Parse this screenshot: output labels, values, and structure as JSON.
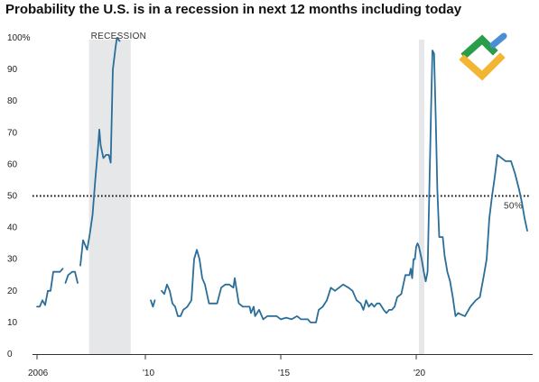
{
  "chart_data": {
    "type": "line",
    "title": "Probability the U.S. is in a recession in next 12 months including today",
    "xlabel": "",
    "ylabel": "",
    "xlim": [
      2006.0,
      2024.1
    ],
    "ylim": [
      0,
      100
    ],
    "y_ticks": [
      {
        "value": 0,
        "label": "0"
      },
      {
        "value": 10,
        "label": "10"
      },
      {
        "value": 20,
        "label": "20"
      },
      {
        "value": 30,
        "label": "30"
      },
      {
        "value": 40,
        "label": "40"
      },
      {
        "value": 50,
        "label": "50"
      },
      {
        "value": 60,
        "label": "60"
      },
      {
        "value": 70,
        "label": "70"
      },
      {
        "value": 80,
        "label": "80"
      },
      {
        "value": 90,
        "label": "90"
      },
      {
        "value": 100,
        "label": "100%"
      }
    ],
    "x_ticks": [
      {
        "value": 2006,
        "label": "2006"
      },
      {
        "value": 2010,
        "label": "'10"
      },
      {
        "value": 2015,
        "label": "'15"
      },
      {
        "value": 2020,
        "label": "'20"
      }
    ],
    "recessions": [
      {
        "start": 2007.92,
        "end": 2009.46,
        "label": "RECESSION"
      },
      {
        "start": 2020.1,
        "end": 2020.3,
        "label": ""
      }
    ],
    "reference_line": {
      "value": 50,
      "label": "50%"
    },
    "grid": false,
    "legend": "none",
    "line_color": "#2a6e99",
    "series": [
      {
        "segments": [
          [
            [
              2006.0,
              15
            ],
            [
              2006.1,
              15
            ],
            [
              2006.2,
              17
            ],
            [
              2006.3,
              15.5
            ],
            [
              2006.4,
              20
            ],
            [
              2006.5,
              20
            ],
            [
              2006.6,
              26
            ],
            [
              2006.75,
              26
            ],
            [
              2006.85,
              26
            ],
            [
              2006.95,
              27
            ]
          ],
          [
            [
              2007.05,
              22.5
            ],
            [
              2007.15,
              25
            ],
            [
              2007.3,
              26
            ],
            [
              2007.4,
              26
            ],
            [
              2007.5,
              22.5
            ]
          ],
          [
            [
              2007.6,
              28
            ],
            [
              2007.7,
              36
            ],
            [
              2007.85,
              33
            ],
            [
              2007.95,
              38
            ],
            [
              2008.05,
              44
            ],
            [
              2008.15,
              55
            ],
            [
              2008.25,
              65
            ],
            [
              2008.3,
              71
            ],
            [
              2008.35,
              66
            ],
            [
              2008.45,
              62
            ],
            [
              2008.55,
              63
            ],
            [
              2008.65,
              63
            ],
            [
              2008.72,
              60.5
            ],
            [
              2008.8,
              90
            ],
            [
              2008.9,
              97
            ],
            [
              2008.95,
              100
            ],
            [
              2009.05,
              99
            ]
          ],
          [
            [
              2010.2,
              17
            ],
            [
              2010.28,
              15
            ],
            [
              2010.35,
              17
            ]
          ],
          [
            [
              2010.6,
              20
            ],
            [
              2010.7,
              19
            ],
            [
              2010.8,
              22
            ],
            [
              2010.9,
              20
            ],
            [
              2011.0,
              16
            ],
            [
              2011.1,
              15
            ],
            [
              2011.2,
              12
            ],
            [
              2011.3,
              12
            ],
            [
              2011.4,
              14
            ],
            [
              2011.55,
              15
            ],
            [
              2011.7,
              17
            ],
            [
              2011.8,
              30
            ],
            [
              2011.9,
              33
            ],
            [
              2012.0,
              30
            ],
            [
              2012.1,
              24
            ],
            [
              2012.2,
              22
            ],
            [
              2012.35,
              16
            ],
            [
              2012.5,
              16
            ],
            [
              2012.65,
              16
            ],
            [
              2012.8,
              21
            ],
            [
              2012.95,
              22
            ],
            [
              2013.1,
              22
            ],
            [
              2013.25,
              21
            ],
            [
              2013.3,
              24
            ],
            [
              2013.45,
              16
            ],
            [
              2013.6,
              15
            ],
            [
              2013.75,
              15
            ],
            [
              2013.85,
              15
            ],
            [
              2013.9,
              13
            ],
            [
              2014.0,
              15
            ],
            [
              2014.05,
              12
            ],
            [
              2014.2,
              14
            ],
            [
              2014.35,
              11
            ],
            [
              2014.5,
              12
            ],
            [
              2014.7,
              12
            ],
            [
              2014.85,
              12
            ],
            [
              2015.0,
              11
            ],
            [
              2015.2,
              11.5
            ],
            [
              2015.4,
              11
            ],
            [
              2015.6,
              12
            ],
            [
              2015.75,
              11
            ],
            [
              2015.9,
              11
            ],
            [
              2016.0,
              11
            ],
            [
              2016.1,
              10
            ],
            [
              2016.3,
              10
            ],
            [
              2016.4,
              14
            ],
            [
              2016.55,
              15
            ],
            [
              2016.7,
              17
            ],
            [
              2016.85,
              21
            ],
            [
              2017.0,
              20
            ],
            [
              2017.15,
              21
            ],
            [
              2017.3,
              22
            ],
            [
              2017.5,
              21
            ],
            [
              2017.65,
              20
            ],
            [
              2017.8,
              17
            ],
            [
              2017.95,
              16
            ],
            [
              2018.05,
              14
            ],
            [
              2018.15,
              17
            ],
            [
              2018.25,
              15
            ],
            [
              2018.35,
              16
            ],
            [
              2018.45,
              15
            ],
            [
              2018.55,
              16
            ],
            [
              2018.65,
              16
            ],
            [
              2018.8,
              14
            ],
            [
              2018.9,
              13
            ],
            [
              2019.0,
              14
            ],
            [
              2019.1,
              14
            ],
            [
              2019.2,
              15
            ],
            [
              2019.3,
              18
            ],
            [
              2019.45,
              19
            ],
            [
              2019.6,
              25
            ],
            [
              2019.75,
              25
            ],
            [
              2019.8,
              27
            ],
            [
              2019.85,
              24
            ],
            [
              2019.9,
              30
            ],
            [
              2019.95,
              30
            ],
            [
              2020.0,
              34
            ],
            [
              2020.05,
              35
            ],
            [
              2020.1,
              34
            ],
            [
              2020.2,
              30
            ],
            [
              2020.28,
              26
            ],
            [
              2020.35,
              23
            ],
            [
              2020.42,
              26
            ],
            [
              2020.48,
              50
            ],
            [
              2020.55,
              78
            ],
            [
              2020.6,
              96
            ],
            [
              2020.66,
              95
            ],
            [
              2020.72,
              75
            ],
            [
              2020.78,
              52
            ],
            [
              2020.85,
              37
            ],
            [
              2020.9,
              37
            ],
            [
              2020.98,
              37
            ],
            [
              2021.05,
              31
            ],
            [
              2021.15,
              26
            ],
            [
              2021.25,
              23
            ],
            [
              2021.35,
              18
            ],
            [
              2021.45,
              12
            ],
            [
              2021.55,
              13
            ],
            [
              2021.65,
              12.5
            ],
            [
              2021.8,
              12
            ],
            [
              2022.0,
              15
            ],
            [
              2022.2,
              17
            ],
            [
              2022.35,
              18
            ],
            [
              2022.5,
              25
            ],
            [
              2022.6,
              30
            ],
            [
              2022.7,
              43
            ],
            [
              2022.8,
              50
            ],
            [
              2022.9,
              56
            ],
            [
              2023.0,
              63
            ],
            [
              2023.15,
              62
            ],
            [
              2023.3,
              61
            ],
            [
              2023.5,
              61
            ],
            [
              2023.65,
              57
            ],
            [
              2023.8,
              52
            ],
            [
              2023.9,
              48
            ],
            [
              2024.0,
              43
            ],
            [
              2024.1,
              39
            ]
          ]
        ]
      }
    ]
  },
  "logo": {
    "colors": [
      "#2a9d4a",
      "#f2b632",
      "#4a8fd4"
    ]
  }
}
